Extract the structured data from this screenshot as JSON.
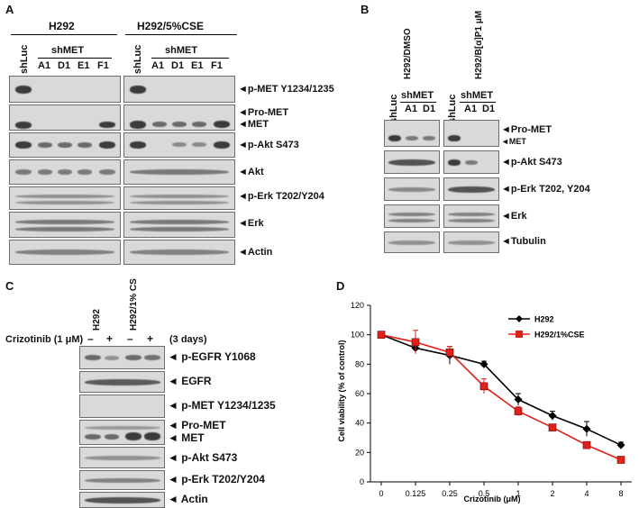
{
  "panels": {
    "a": "A",
    "b": "B",
    "c": "C",
    "d": "D"
  },
  "panel_a": {
    "group1": "H292",
    "group2": "H292/5%CSE",
    "control_lane": "shLuc",
    "sh_label": "shMET",
    "lanes": [
      "A1",
      "D1",
      "E1",
      "F1"
    ],
    "rows": [
      "p-MET Y1234/1235",
      "Pro-MET",
      "MET",
      "p-Akt S473",
      "Akt",
      "p-Erk T202/Y204",
      "Erk",
      "Actin"
    ]
  },
  "panel_b": {
    "group1": "H292/DMSO",
    "group2": "H292/B[α]P1 μM",
    "control_lane": "shLuc",
    "sh_label": "shMET",
    "lanes": [
      "A1",
      "D1"
    ],
    "rows": [
      "Pro-MET",
      "MET",
      "p-Akt S473",
      "p-Erk T202, Y204",
      "Erk",
      "Tubulin"
    ]
  },
  "panel_c": {
    "group1": "H292",
    "group2": "H292/1% CS",
    "treatment": "Crizotinib (1 μM)",
    "duration": "(3 days)",
    "minus": "–",
    "plus": "+",
    "rows": [
      "p-EGFR  Y1068",
      "EGFR",
      "p-MET  Y1234/1235",
      "Pro-MET",
      "MET",
      "p-Akt  S473",
      "p-Erk  T202/Y204",
      "Actin"
    ]
  },
  "chart_data": {
    "type": "line",
    "title": "",
    "xlabel": "Crizotinib (μM)",
    "ylabel": "Cell viability (% of control)",
    "categories": [
      "0",
      "0.125",
      "0.25",
      "0.5",
      "1",
      "2",
      "4",
      "8"
    ],
    "ylim": [
      0,
      120
    ],
    "yticks": [
      0,
      20,
      40,
      60,
      80,
      100,
      120
    ],
    "legend_position": "top-right",
    "grid": false,
    "series": [
      {
        "name": "H292",
        "color": "#000000",
        "marker": "diamond",
        "values": [
          100,
          91,
          86,
          80,
          56,
          45,
          36,
          25
        ],
        "errors": [
          2,
          2,
          6,
          2,
          4,
          3,
          5,
          2
        ]
      },
      {
        "name": "H292/1%CSE",
        "color": "#e0201b",
        "marker": "square",
        "values": [
          100,
          95,
          88,
          65,
          48,
          37,
          25,
          15
        ],
        "errors": [
          2,
          8,
          4,
          5,
          3,
          2,
          2,
          2
        ]
      }
    ]
  }
}
